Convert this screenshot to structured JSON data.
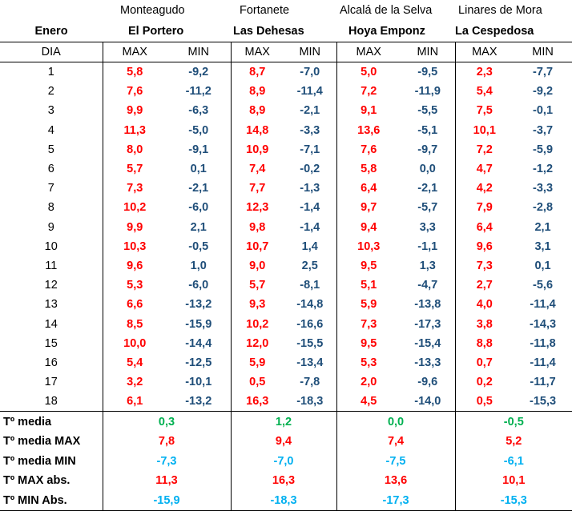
{
  "header": {
    "month": "Enero",
    "locations": [
      {
        "town": "Monteagudo",
        "station": "El Portero"
      },
      {
        "town": "Fortanete",
        "station": "Las Dehesas"
      },
      {
        "town": "Alcalá de la Selva",
        "station": "Hoya Emponz"
      },
      {
        "town": "Linares de Mora",
        "station": "La Cespedosa"
      }
    ],
    "day_label": "DIA",
    "max_label": "MAX",
    "min_label": "MIN"
  },
  "rows": [
    {
      "day": "1",
      "v": [
        "5,8",
        "-9,2",
        "8,7",
        "-7,0",
        "5,0",
        "-9,5",
        "2,3",
        "-7,7"
      ]
    },
    {
      "day": "2",
      "v": [
        "7,6",
        "-11,2",
        "8,9",
        "-11,4",
        "7,2",
        "-11,9",
        "5,4",
        "-9,2"
      ]
    },
    {
      "day": "3",
      "v": [
        "9,9",
        "-6,3",
        "8,9",
        "-2,1",
        "9,1",
        "-5,5",
        "7,5",
        "-0,1"
      ]
    },
    {
      "day": "4",
      "v": [
        "11,3",
        "-5,0",
        "14,8",
        "-3,3",
        "13,6",
        "-5,1",
        "10,1",
        "-3,7"
      ]
    },
    {
      "day": "5",
      "v": [
        "8,0",
        "-9,1",
        "10,9",
        "-7,1",
        "7,6",
        "-9,7",
        "7,2",
        "-5,9"
      ]
    },
    {
      "day": "6",
      "v": [
        "5,7",
        "0,1",
        "7,4",
        "-0,2",
        "5,8",
        "0,0",
        "4,7",
        "-1,2"
      ]
    },
    {
      "day": "7",
      "v": [
        "7,3",
        "-2,1",
        "7,7",
        "-1,3",
        "6,4",
        "-2,1",
        "4,2",
        "-3,3"
      ]
    },
    {
      "day": "8",
      "v": [
        "10,2",
        "-6,0",
        "12,3",
        "-1,4",
        "9,7",
        "-5,7",
        "7,9",
        "-2,8"
      ]
    },
    {
      "day": "9",
      "v": [
        "9,9",
        "2,1",
        "9,8",
        "-1,4",
        "9,4",
        "3,3",
        "6,4",
        "2,1"
      ]
    },
    {
      "day": "10",
      "v": [
        "10,3",
        "-0,5",
        "10,7",
        "1,4",
        "10,3",
        "-1,1",
        "9,6",
        "3,1"
      ]
    },
    {
      "day": "11",
      "v": [
        "9,6",
        "1,0",
        "9,0",
        "2,5",
        "9,5",
        "1,3",
        "7,3",
        "0,1"
      ]
    },
    {
      "day": "12",
      "v": [
        "5,3",
        "-6,0",
        "5,7",
        "-8,1",
        "5,1",
        "-4,7",
        "2,7",
        "-5,6"
      ]
    },
    {
      "day": "13",
      "v": [
        "6,6",
        "-13,2",
        "9,3",
        "-14,8",
        "5,9",
        "-13,8",
        "4,0",
        "-11,4"
      ]
    },
    {
      "day": "14",
      "v": [
        "8,5",
        "-15,9",
        "10,2",
        "-16,6",
        "7,3",
        "-17,3",
        "3,8",
        "-14,3"
      ]
    },
    {
      "day": "15",
      "v": [
        "10,0",
        "-14,4",
        "12,0",
        "-15,5",
        "9,5",
        "-15,4",
        "8,8",
        "-11,8"
      ]
    },
    {
      "day": "16",
      "v": [
        "5,4",
        "-12,5",
        "5,9",
        "-13,4",
        "5,3",
        "-13,3",
        "0,7",
        "-11,4"
      ]
    },
    {
      "day": "17",
      "v": [
        "3,2",
        "-10,1",
        "0,5",
        "-7,8",
        "2,0",
        "-9,6",
        "0,2",
        "-11,7"
      ]
    },
    {
      "day": "18",
      "v": [
        "6,1",
        "-13,2",
        "16,3",
        "-18,3",
        "4,5",
        "-14,0",
        "0,5",
        "-15,3"
      ]
    }
  ],
  "summary": [
    {
      "label": "Tº media",
      "color": "green",
      "v": [
        "0,3",
        "1,2",
        "0,0",
        "-0,5"
      ]
    },
    {
      "label": "Tº media MAX",
      "color": "red",
      "v": [
        "7,8",
        "9,4",
        "7,4",
        "5,2"
      ]
    },
    {
      "label": "Tº media MIN",
      "color": "cyan",
      "v": [
        "-7,3",
        "-7,0",
        "-7,5",
        "-6,1"
      ]
    },
    {
      "label": "Tº MAX abs.",
      "color": "red",
      "v": [
        "11,3",
        "16,3",
        "13,6",
        "10,1"
      ]
    },
    {
      "label": "Tº MIN Abs.",
      "color": "cyan",
      "v": [
        "-15,9",
        "-18,3",
        "-17,3",
        "-15,3"
      ]
    }
  ],
  "colors": {
    "max": "#ff0000",
    "min": "#1f4e79",
    "mean": "#00b050",
    "min_summary": "#00b0f0"
  }
}
